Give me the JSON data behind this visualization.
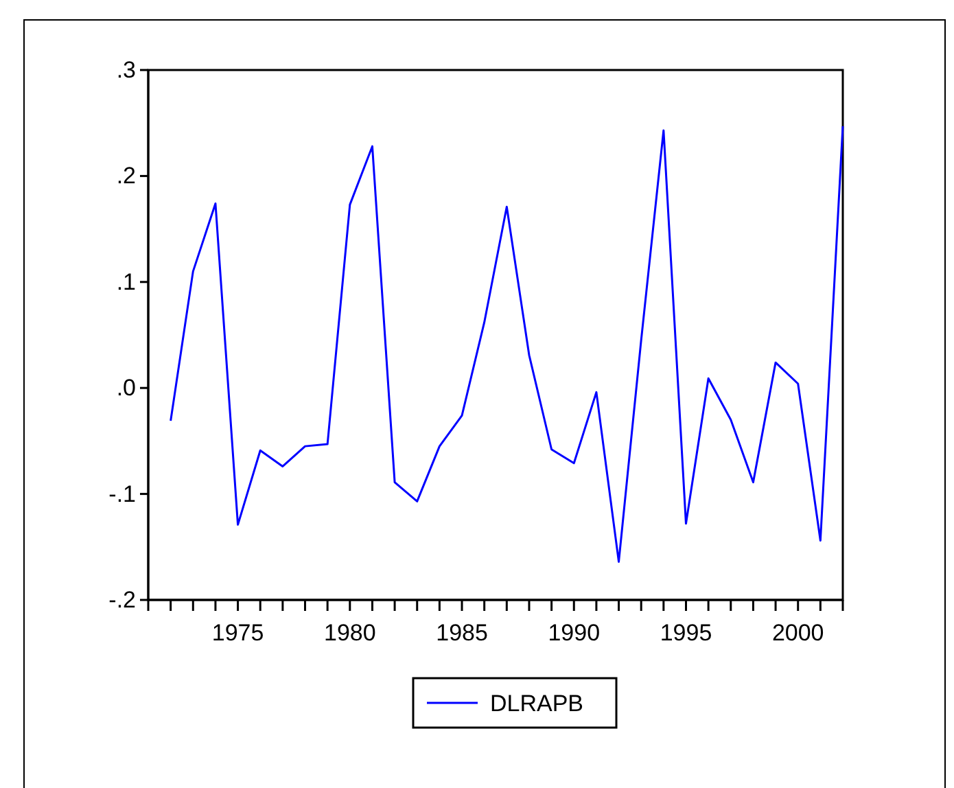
{
  "chart_data": {
    "type": "line",
    "x": [
      1972,
      1973,
      1974,
      1975,
      1976,
      1977,
      1978,
      1979,
      1980,
      1981,
      1982,
      1983,
      1984,
      1985,
      1986,
      1987,
      1988,
      1989,
      1990,
      1991,
      1992,
      1993,
      1994,
      1995,
      1996,
      1997,
      1998,
      1999,
      2000,
      2001,
      2002
    ],
    "series": [
      {
        "name": "DLRAPB",
        "color": "#0000ff",
        "values": [
          -0.031,
          0.11,
          0.174,
          -0.129,
          -0.059,
          -0.074,
          -0.055,
          -0.053,
          0.173,
          0.228,
          -0.089,
          -0.107,
          -0.055,
          -0.026,
          0.062,
          0.171,
          0.031,
          -0.058,
          -0.071,
          -0.004,
          -0.164,
          0.045,
          0.243,
          -0.128,
          0.009,
          -0.03,
          -0.089,
          0.024,
          0.004,
          -0.144,
          0.247
        ]
      }
    ],
    "xlim": [
      1971,
      2002
    ],
    "xticks": [
      {
        "value": 1971,
        "label": null
      },
      {
        "value": 1972,
        "label": null
      },
      {
        "value": 1973,
        "label": null
      },
      {
        "value": 1974,
        "label": null
      },
      1975,
      {
        "value": 1976,
        "label": null
      },
      {
        "value": 1977,
        "label": null
      },
      {
        "value": 1978,
        "label": null
      },
      {
        "value": 1979,
        "label": null
      },
      1980,
      {
        "value": 1981,
        "label": null
      },
      {
        "value": 1982,
        "label": null
      },
      {
        "value": 1983,
        "label": null
      },
      {
        "value": 1984,
        "label": null
      },
      1985,
      {
        "value": 1986,
        "label": null
      },
      {
        "value": 1987,
        "label": null
      },
      {
        "value": 1988,
        "label": null
      },
      {
        "value": 1989,
        "label": null
      },
      1990,
      {
        "value": 1991,
        "label": null
      },
      {
        "value": 1992,
        "label": null
      },
      {
        "value": 1993,
        "label": null
      },
      {
        "value": 1994,
        "label": null
      },
      1995,
      {
        "value": 1996,
        "label": null
      },
      {
        "value": 1997,
        "label": null
      },
      {
        "value": 1998,
        "label": null
      },
      {
        "value": 1999,
        "label": null
      },
      2000,
      {
        "value": 2001,
        "label": null
      },
      {
        "value": 2002,
        "label": null
      }
    ],
    "ylim": [
      -0.2,
      0.3
    ],
    "yticks": [
      {
        "value": -0.2,
        "label": "-.2"
      },
      {
        "value": -0.1,
        "label": "-.1"
      },
      {
        "value": 0,
        "label": ".0"
      },
      {
        "value": 0.1,
        "label": ".1"
      },
      {
        "value": 0.2,
        "label": ".2"
      },
      {
        "value": 0.3,
        "label": ".3"
      }
    ],
    "grid": false,
    "legend": "bottom",
    "marker": "none",
    "line_style": "solid"
  }
}
